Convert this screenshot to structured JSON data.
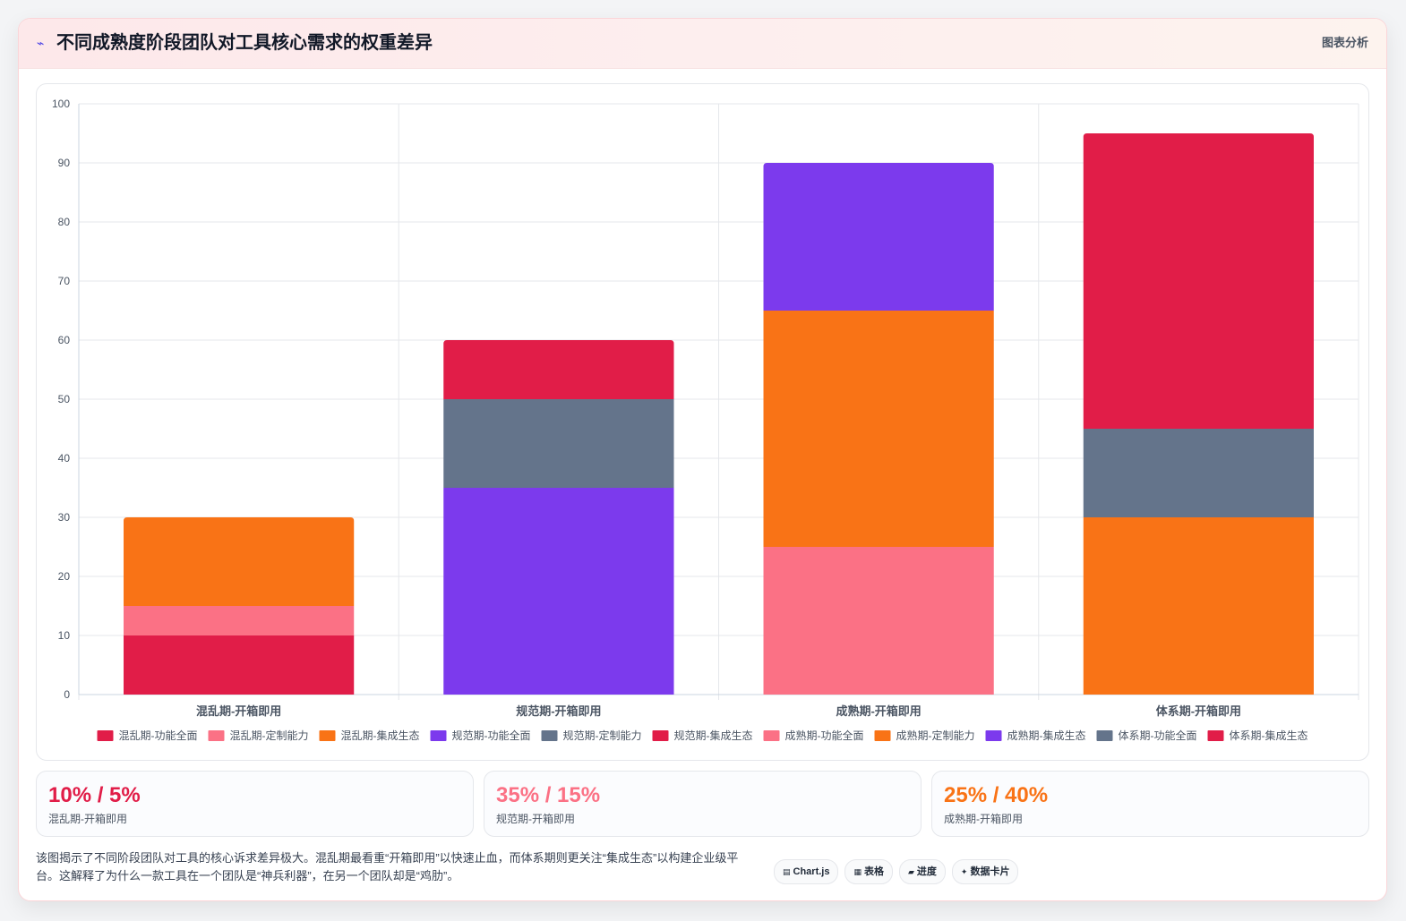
{
  "header": {
    "icon": "bolt-icon",
    "title": "不同成熟度阶段团队对工具核心需求的权重差异",
    "tag": "图表分析"
  },
  "chart_data": {
    "type": "bar",
    "stacked": true,
    "categories": [
      "混乱期-开箱即用",
      "规范期-开箱即用",
      "成熟期-开箱即用",
      "体系期-开箱即用"
    ],
    "ylim": [
      0,
      100
    ],
    "yticks": [
      0,
      10,
      20,
      30,
      40,
      50,
      60,
      70,
      80,
      90,
      100
    ],
    "grid": true,
    "legend_position": "bottom",
    "series": [
      {
        "name": "混乱期-功能全面",
        "color": "#e11d48",
        "values": [
          10,
          0,
          0,
          0
        ]
      },
      {
        "name": "混乱期-定制能力",
        "color": "#fb7185",
        "values": [
          5,
          0,
          0,
          0
        ]
      },
      {
        "name": "混乱期-集成生态",
        "color": "#f97316",
        "values": [
          15,
          0,
          0,
          0
        ]
      },
      {
        "name": "规范期-功能全面",
        "color": "#7c3aed",
        "values": [
          0,
          35,
          0,
          0
        ]
      },
      {
        "name": "规范期-定制能力",
        "color": "#64748b",
        "values": [
          0,
          15,
          0,
          0
        ]
      },
      {
        "name": "规范期-集成生态",
        "color": "#e11d48",
        "values": [
          0,
          10,
          0,
          0
        ]
      },
      {
        "name": "成熟期-功能全面",
        "color": "#fb7185",
        "values": [
          0,
          0,
          25,
          0
        ]
      },
      {
        "name": "成熟期-定制能力",
        "color": "#f97316",
        "values": [
          0,
          0,
          40,
          0
        ]
      },
      {
        "name": "成熟期-集成生态",
        "color": "#7c3aed",
        "values": [
          0,
          0,
          25,
          0
        ]
      },
      {
        "name": "体系期-功能全面",
        "color": "#64748b",
        "values": [
          0,
          0,
          0,
          15
        ]
      },
      {
        "name": "体系期-集成生态",
        "color": "#e11d48",
        "values": [
          0,
          0,
          0,
          50
        ]
      }
    ],
    "base_series": {
      "color": "#f97316",
      "values": [
        0,
        0,
        0,
        30
      ]
    }
  },
  "stats": [
    {
      "value": "10% / 5%",
      "label": "混乱期-开箱即用",
      "color": "#e11d48"
    },
    {
      "value": "35% / 15%",
      "label": "规范期-开箱即用",
      "color": "#fb7185"
    },
    {
      "value": "25% / 40%",
      "label": "成熟期-开箱即用",
      "color": "#f97316"
    }
  ],
  "footer": {
    "text": "该图揭示了不同阶段团队对工具的核心诉求差异极大。混乱期最看重“开箱即用”以快速止血，而体系期则更关注“集成生态”以构建企业级平台。这解释了为什么一款工具在一个团队是“神兵利器”，在另一个团队却是“鸡肋”。",
    "chips": [
      {
        "icon": "chart-icon",
        "glyph": "▤",
        "label": "Chart.js"
      },
      {
        "icon": "table-icon",
        "glyph": "▦",
        "label": "表格"
      },
      {
        "icon": "progress-icon",
        "glyph": "▰",
        "label": "进度"
      },
      {
        "icon": "sparkle-icon",
        "glyph": "✦",
        "label": "数据卡片"
      }
    ]
  }
}
